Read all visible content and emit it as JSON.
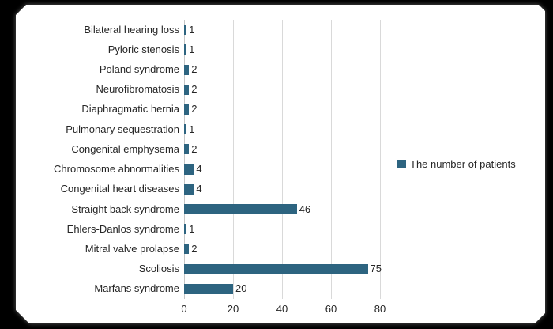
{
  "chart_data": {
    "type": "bar",
    "orientation": "horizontal",
    "title": "",
    "xlabel": "",
    "ylabel": "",
    "categories": [
      "Bilateral hearing loss",
      "Pyloric stenosis",
      "Poland syndrome",
      "Neurofibromatosis",
      "Diaphragmatic hernia",
      "Pulmonary sequestration",
      "Congenital emphysema",
      "Chromosome abnormalities",
      "Congenital heart diseases",
      "Straight back syndrome",
      "Ehlers-Danlos syndrome",
      "Mitral valve prolapse",
      "Scoliosis",
      "Marfans syndrome"
    ],
    "series": [
      {
        "name": "The number of patients",
        "values": [
          1,
          1,
          2,
          2,
          2,
          1,
          2,
          4,
          4,
          46,
          1,
          2,
          75,
          20
        ]
      }
    ],
    "x_ticks": [
      0,
      20,
      40,
      60,
      80
    ],
    "xlim": [
      0,
      88
    ],
    "grid": true,
    "data_labels_shown": true,
    "legend": {
      "label": "The number of patients",
      "position": "right",
      "marker": "square"
    },
    "colors": {
      "bar": "#2d6480",
      "gridline": "#d9d9d9",
      "axis_line": "#c6c6c6",
      "text": "#262626",
      "frame_background": "#000000",
      "panel_background": "#ffffff"
    }
  }
}
